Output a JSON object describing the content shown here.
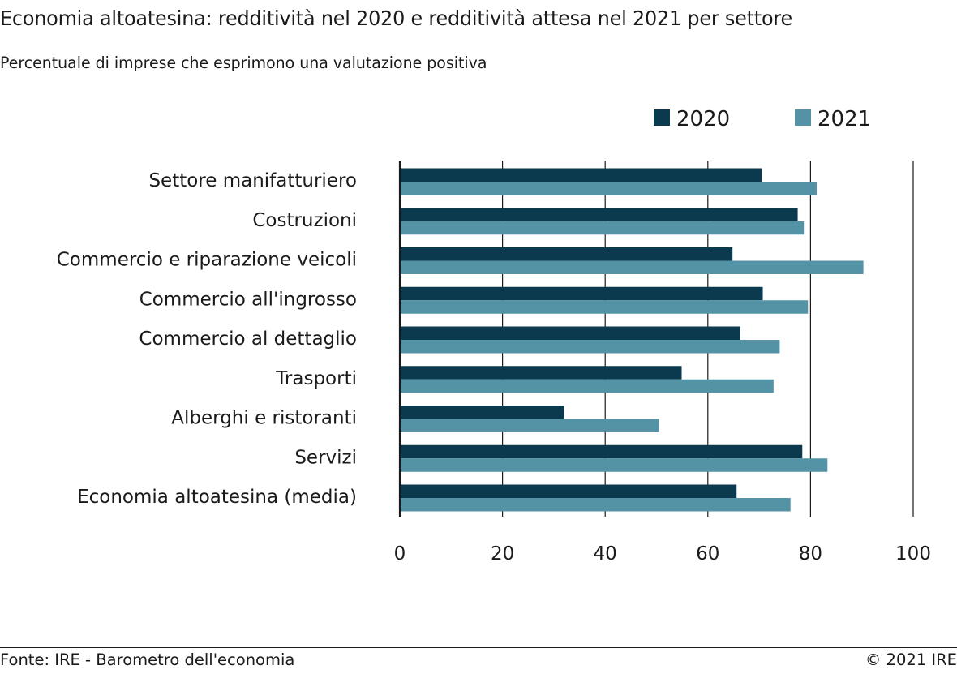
{
  "title": "Economia altoatesina: redditività nel 2020 e redditività attesa nel 2021 per settore",
  "subtitle": "Percentuale di imprese che esprimono una valutazione positiva",
  "footer": {
    "source": "Fonte: IRE - Barometro dell'economia",
    "copyright": "© 2021 IRE"
  },
  "chart_data": {
    "type": "bar",
    "orientation": "horizontal",
    "categories": [
      "Settore manifatturiero",
      "Costruzioni",
      "Commercio e riparazione veicoli",
      "Commercio all'ingrosso",
      "Commercio al dettaglio",
      "Trasporti",
      "Alberghi e ristoranti",
      "Servizi",
      "Economia altoatesina (media)"
    ],
    "series": [
      {
        "name": "2020",
        "color": "#0b3a4e",
        "values": [
          70.5,
          77.5,
          64.8,
          70.7,
          66.3,
          54.9,
          32.0,
          78.4,
          65.6
        ]
      },
      {
        "name": "2021",
        "color": "#5493a6",
        "values": [
          81.2,
          78.7,
          90.3,
          79.5,
          74.0,
          72.8,
          50.5,
          83.3,
          76.1
        ]
      }
    ],
    "xlim": [
      0,
      100
    ],
    "xticks": [
      "0",
      "20",
      "40",
      "60",
      "80",
      "100"
    ],
    "grid": "vertical",
    "legend": "top-right"
  }
}
